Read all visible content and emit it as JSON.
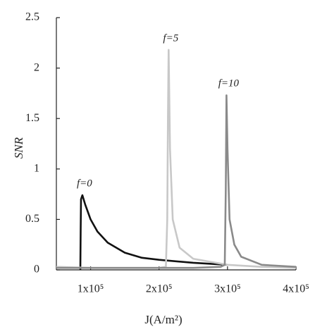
{
  "chart_data": {
    "type": "line",
    "x_label": "J(A/m²)",
    "y_label": "SNR",
    "xlim": [
      50000,
      400000
    ],
    "xticks": [
      {
        "value": 100000,
        "label": "1x10⁵"
      },
      {
        "value": 200000,
        "label": "2x10⁵"
      },
      {
        "value": 300000,
        "label": "3x10⁵"
      },
      {
        "value": 400000,
        "label": "4x10⁵"
      }
    ],
    "ylim": [
      0,
      2.5
    ],
    "yticks": [
      0,
      0.5,
      1,
      1.5,
      2,
      2.5
    ],
    "annotations": [
      "f=0",
      "f=5",
      "f=10"
    ],
    "series": [
      {
        "color": "#111111",
        "x": [
          85000,
          85500,
          86000,
          88000,
          92000,
          100000,
          110000,
          125000,
          150000,
          175000,
          200000,
          250000,
          300000
        ],
        "values": [
          0,
          0.4,
          0.7,
          0.74,
          0.65,
          0.5,
          0.38,
          0.27,
          0.17,
          0.12,
          0.1,
          0.07,
          0.05
        ]
      },
      {
        "color": "#c8c8c8",
        "x": [
          50000,
          100000,
          150000,
          200000,
          210000,
          212000,
          213000,
          214000,
          216000,
          220000,
          230000,
          250000,
          300000,
          350000,
          400000
        ],
        "values": [
          0.03,
          0.02,
          0.02,
          0.02,
          0.03,
          0.5,
          1.5,
          2.18,
          1.2,
          0.5,
          0.22,
          0.11,
          0.05,
          0.03,
          0.02
        ]
      },
      {
        "color": "#8a8a8a",
        "x": [
          50000,
          150000,
          250000,
          290000,
          296000,
          297500,
          298500,
          300000,
          303000,
          310000,
          320000,
          350000,
          400000
        ],
        "values": [
          0.02,
          0.02,
          0.02,
          0.03,
          0.05,
          0.8,
          1.73,
          1.2,
          0.5,
          0.25,
          0.13,
          0.05,
          0.03
        ]
      }
    ]
  }
}
